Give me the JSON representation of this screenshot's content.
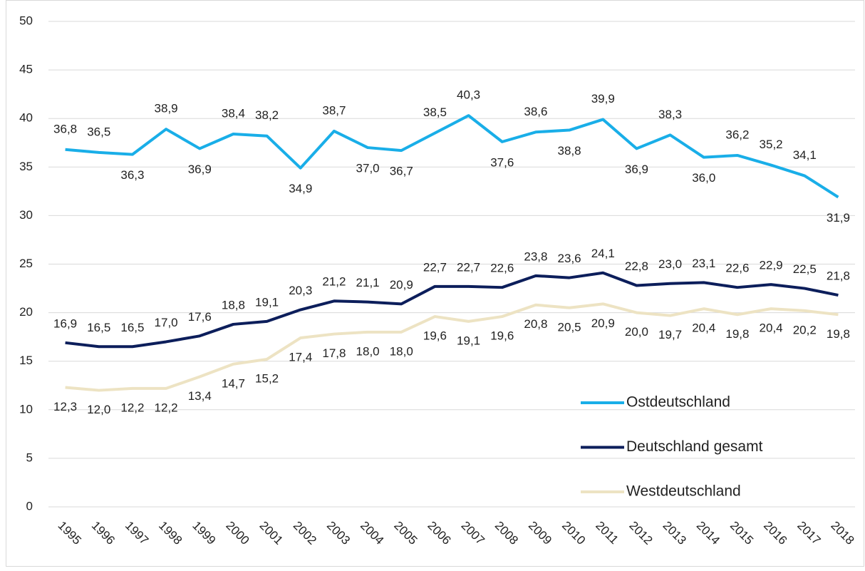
{
  "chart_data": {
    "type": "line",
    "categories": [
      "1995",
      "1996",
      "1997",
      "1998",
      "1999",
      "2000",
      "2001",
      "2002",
      "2003",
      "2004",
      "2005",
      "2006",
      "2007",
      "2008",
      "2009",
      "2010",
      "2011",
      "2012",
      "2013",
      "2014",
      "2015",
      "2016",
      "2017",
      "2018"
    ],
    "series": [
      {
        "name": "Ostdeutschland",
        "color": "#19aee8",
        "values": [
          36.8,
          36.5,
          36.3,
          38.9,
          36.9,
          38.4,
          38.2,
          34.9,
          38.7,
          37.0,
          36.7,
          38.5,
          40.3,
          37.6,
          38.6,
          38.8,
          39.9,
          36.9,
          38.3,
          36.0,
          36.2,
          35.2,
          34.1,
          31.9
        ],
        "value_labels": [
          "36,8",
          "36,5",
          "36,3",
          "38,9",
          "36,9",
          "38,4",
          "38,2",
          "34,9",
          "38,7",
          "37,0",
          "36,7",
          "38,5",
          "40,3",
          "37,6",
          "38,6",
          "38,8",
          "39,9",
          "36,9",
          "38,3",
          "36,0",
          "36,2",
          "35,2",
          "34,1",
          "31,9"
        ]
      },
      {
        "name": "Deutschland gesamt",
        "color": "#0c1e5b",
        "values": [
          16.9,
          16.5,
          16.5,
          17.0,
          17.6,
          18.8,
          19.1,
          20.3,
          21.2,
          21.1,
          20.9,
          22.7,
          22.7,
          22.6,
          23.8,
          23.6,
          24.1,
          22.8,
          23.0,
          23.1,
          22.6,
          22.9,
          22.5,
          21.8
        ],
        "value_labels": [
          "16,9",
          "16,5",
          "16,5",
          "17,0",
          "17,6",
          "18,8",
          "19,1",
          "20,3",
          "21,2",
          "21,1",
          "20,9",
          "22,7",
          "22,7",
          "22,6",
          "23,8",
          "23,6",
          "24,1",
          "22,8",
          "23,0",
          "23,1",
          "22,6",
          "22,9",
          "22,5",
          "21,8"
        ]
      },
      {
        "name": "Westdeutschland",
        "color": "#ede3c3",
        "values": [
          12.3,
          12.0,
          12.2,
          12.2,
          13.4,
          14.7,
          15.2,
          17.4,
          17.8,
          18.0,
          18.0,
          19.6,
          19.1,
          19.6,
          20.8,
          20.5,
          20.9,
          20.0,
          19.7,
          20.4,
          19.8,
          20.4,
          20.2,
          19.8
        ],
        "value_labels": [
          "12,3",
          "12,0",
          "12,2",
          "12,2",
          "13,4",
          "14,7",
          "15,2",
          "17,4",
          "17,8",
          "18,0",
          "18,0",
          "19,6",
          "19,1",
          "19,6",
          "20,8",
          "20,5",
          "20,9",
          "20,0",
          "19,7",
          "20,4",
          "19,8",
          "20,4",
          "20,2",
          "19,8"
        ]
      }
    ],
    "ylim": [
      0,
      50
    ],
    "yticks": [
      0,
      5,
      10,
      15,
      20,
      25,
      30,
      35,
      40,
      45,
      50
    ],
    "grid": true,
    "legend": "lower-right"
  }
}
